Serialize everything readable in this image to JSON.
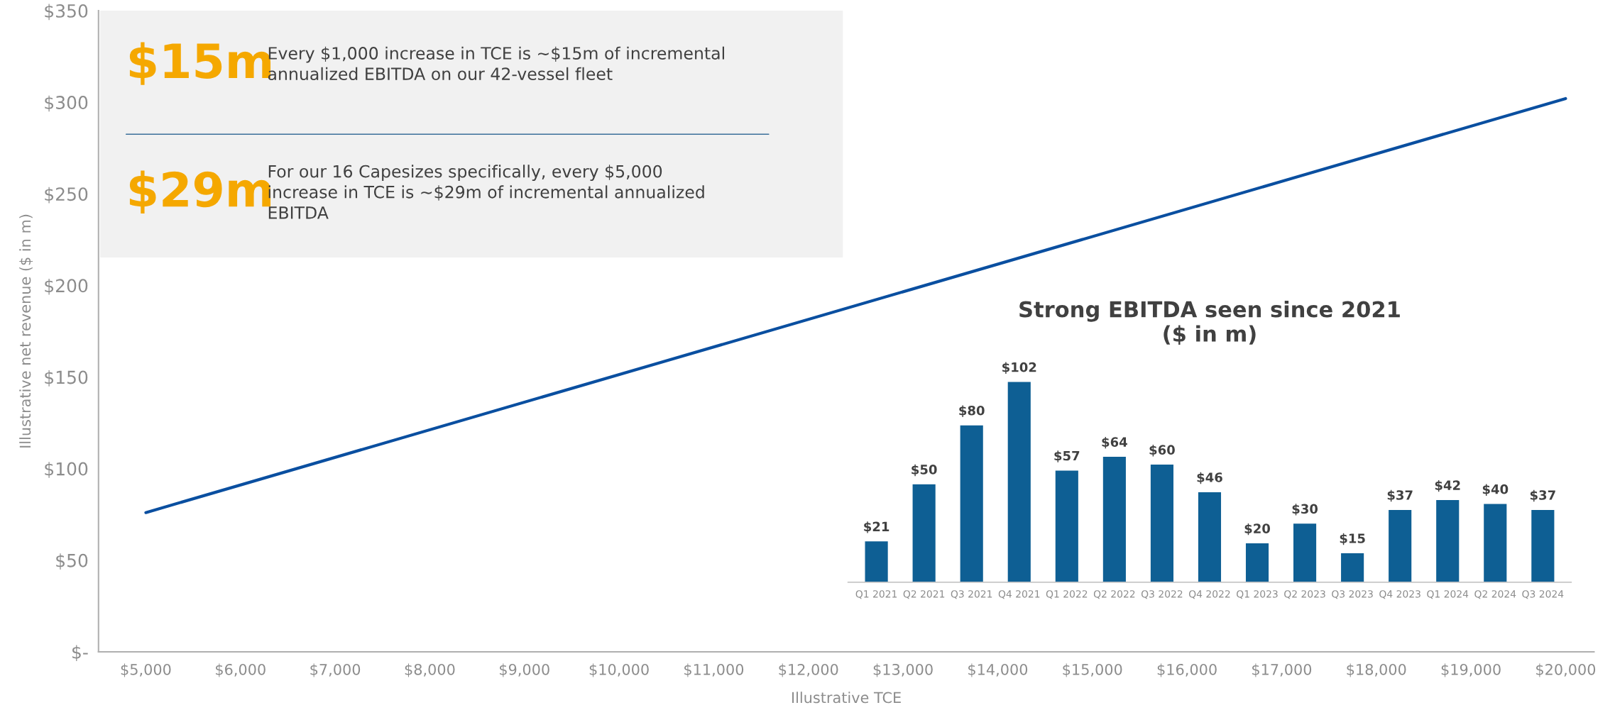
{
  "chart_data": [
    {
      "type": "line",
      "xlabel": "Illustrative TCE",
      "ylabel": "Illustrative net revenue ($ in m)",
      "x": [
        5000,
        20000
      ],
      "series": [
        {
          "color": "#0a4fa0",
          "values": [
            76,
            302
          ]
        }
      ],
      "xlim": [
        4500,
        20300
      ],
      "ylim": [
        0,
        350
      ],
      "xticks": [
        {
          "value": 5000,
          "label": "$5,000"
        },
        {
          "value": 6000,
          "label": "$6,000"
        },
        {
          "value": 7000,
          "label": "$7,000"
        },
        {
          "value": 8000,
          "label": "$8,000"
        },
        {
          "value": 9000,
          "label": "$9,000"
        },
        {
          "value": 10000,
          "label": "$10,000"
        },
        {
          "value": 11000,
          "label": "$11,000"
        },
        {
          "value": 12000,
          "label": "$12,000"
        },
        {
          "value": 13000,
          "label": "$13,000"
        },
        {
          "value": 14000,
          "label": "$14,000"
        },
        {
          "value": 15000,
          "label": "$15,000"
        },
        {
          "value": 16000,
          "label": "$16,000"
        },
        {
          "value": 17000,
          "label": "$17,000"
        },
        {
          "value": 18000,
          "label": "$18,000"
        },
        {
          "value": 19000,
          "label": "$19,000"
        },
        {
          "value": 20000,
          "label": "$20,000"
        }
      ],
      "yticks": [
        {
          "value": 0,
          "label": "$-"
        },
        {
          "value": 50,
          "label": "$50"
        },
        {
          "value": 100,
          "label": "$100"
        },
        {
          "value": 150,
          "label": "$150"
        },
        {
          "value": 200,
          "label": "$200"
        },
        {
          "value": 250,
          "label": "$250"
        },
        {
          "value": 300,
          "label": "$300"
        },
        {
          "value": 350,
          "label": "$350"
        }
      ],
      "grid": false,
      "marker": "none",
      "line_style": "solid",
      "legend": false
    },
    {
      "type": "other",
      "annotations": [
        "$15m",
        "Every $1,000 increase in TCE is ~$15m of incremental\nannualized EBITDA on our 42-vessel fleet",
        "$29m",
        "For our 16 Capesizes specifically, every $5,000\nincrease in TCE is ~$29m of incremental annualized\nEBITDA"
      ]
    },
    {
      "type": "bar",
      "title": "Strong EBITDA seen since 2021\n($ in m)",
      "categories": [
        "Q1 2021",
        "Q2 2021",
        "Q3 2021",
        "Q4 2021",
        "Q1 2022",
        "Q2 2022",
        "Q3 2022",
        "Q4 2022",
        "Q1 2023",
        "Q2 2023",
        "Q3 2023",
        "Q4 2023",
        "Q1 2024",
        "Q2 2024",
        "Q3 2024"
      ],
      "values": [
        21,
        50,
        80,
        102,
        57,
        64,
        60,
        46,
        20,
        30,
        15,
        37,
        42,
        40,
        37
      ],
      "value_labels": [
        "$21",
        "$50",
        "$80",
        "$102",
        "$57",
        "$64",
        "$60",
        "$46",
        "$20",
        "$30",
        "$15",
        "$37",
        "$42",
        "$40",
        "$37"
      ],
      "color": "#0e5f94",
      "tick_labels": "x",
      "grid": false,
      "legend": false
    }
  ]
}
